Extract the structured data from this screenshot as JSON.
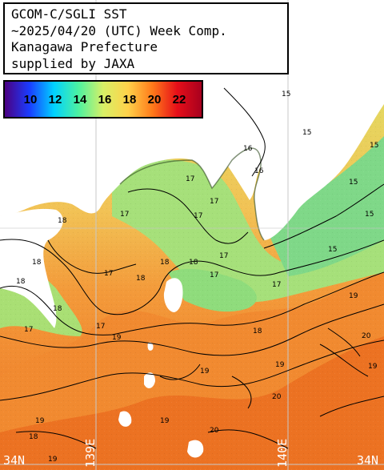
{
  "header": {
    "line1": "GCOM-C/SGLI SST",
    "line2": "~2025/04/20 (UTC) Week Comp.",
    "line3": "Kanagawa Prefecture",
    "line4": "supplied by JAXA"
  },
  "legend": {
    "labels": [
      "10",
      "12",
      "14",
      "16",
      "18",
      "20",
      "22"
    ],
    "colors": [
      "#4b0082",
      "#1a3cff",
      "#00d2ff",
      "#4df2a0",
      "#d8f066",
      "#ffd24a",
      "#ff7a1a",
      "#e60f19",
      "#a8001e"
    ]
  },
  "axes": {
    "lon_139": "139E",
    "lon_140": "140E",
    "lat_34_left": "34N",
    "lat_34_right": "34N"
  },
  "contour_labels": [
    "15",
    "15",
    "15",
    "15",
    "15",
    "15",
    "16",
    "16",
    "17",
    "17",
    "17",
    "17",
    "17",
    "17",
    "17",
    "17",
    "17",
    "17",
    "18",
    "18",
    "18",
    "18",
    "18",
    "18",
    "18",
    "18",
    "18",
    "19",
    "19",
    "19",
    "19",
    "19",
    "19",
    "19",
    "19",
    "20",
    "20",
    "20"
  ],
  "colors": {
    "land": "#ffffff",
    "cold_water": "#8ee07a",
    "cool_water": "#c8e870",
    "mild_water": "#f0d060",
    "warm_water": "#f39d3c",
    "hot_water": "#ee7a25",
    "grid": "#c0c0c0"
  }
}
